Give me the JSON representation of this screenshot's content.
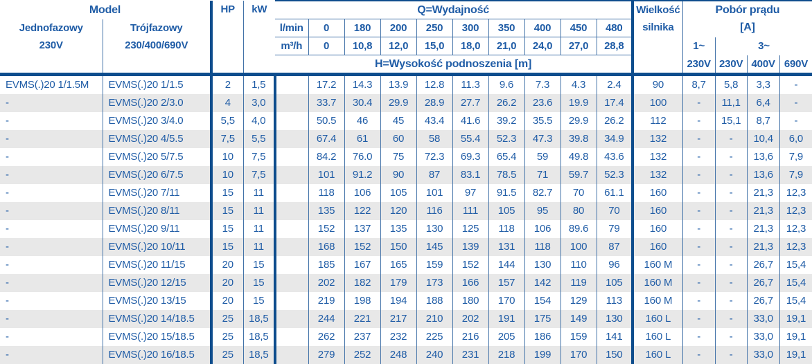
{
  "header": {
    "model": "Model",
    "single_phase_line1": "Jednofazowy",
    "single_phase_line2": "230V",
    "three_phase_line1": "Trójfazowy",
    "three_phase_line2": "230/400/690V",
    "hp": "HP",
    "kw": "kW",
    "flow_title": "Q=Wydajność",
    "flow_unit_lmin": "l/min",
    "flow_unit_m3h": "m³/h",
    "flow_lmin": [
      "0",
      "180",
      "200",
      "250",
      "300",
      "350",
      "400",
      "450",
      "480"
    ],
    "flow_m3h": [
      "0",
      "10,8",
      "12,0",
      "15,0",
      "18,0",
      "21,0",
      "24,0",
      "27,0",
      "28,8"
    ],
    "head_title": "H=Wysokość podnoszenia [m]",
    "motor_size_line1": "Wielkość",
    "motor_size_line2": "silnika",
    "current_title": "Pobór prądu",
    "current_unit": "[A]",
    "phase1": "1~",
    "phase3": "3~",
    "volt_1ph_230": "230V",
    "volt_3ph_230": "230V",
    "volt_3ph_400": "400V",
    "volt_3ph_690": "690V"
  },
  "colors": {
    "text_blue": "#1f5ca6",
    "thin_line_blue": "#4272a8",
    "thick_line_navy": "#0e4d8d",
    "stripe_gray": "#e8e8e8"
  },
  "rows": [
    {
      "m1": "EVMS(.)20 1/1.5M",
      "m3": "EVMS(.)20 1/1.5",
      "hp": "2",
      "kw": "1,5",
      "h": [
        "17.2",
        "14.3",
        "13.9",
        "12.8",
        "11.3",
        "9.6",
        "7.3",
        "4.3",
        "2.4"
      ],
      "size": "90",
      "a": [
        "8,7",
        "5,8",
        "3,3",
        "-"
      ]
    },
    {
      "m1": "-",
      "m3": "EVMS(.)20 2/3.0",
      "hp": "4",
      "kw": "3,0",
      "h": [
        "33.7",
        "30.4",
        "29.9",
        "28.9",
        "27.7",
        "26.2",
        "23.6",
        "19.9",
        "17.4"
      ],
      "size": "100",
      "a": [
        "-",
        "11,1",
        "6,4",
        "-"
      ]
    },
    {
      "m1": "-",
      "m3": "EVMS(.)20 3/4.0",
      "hp": "5,5",
      "kw": "4,0",
      "h": [
        "50.5",
        "46",
        "45",
        "43.4",
        "41.6",
        "39.2",
        "35.5",
        "29.9",
        "26.2"
      ],
      "size": "112",
      "a": [
        "-",
        "15,1",
        "8,7",
        "-"
      ]
    },
    {
      "m1": "-",
      "m3": "EVMS(.)20 4/5.5",
      "hp": "7,5",
      "kw": "5,5",
      "h": [
        "67.4",
        "61",
        "60",
        "58",
        "55.4",
        "52.3",
        "47.3",
        "39.8",
        "34.9"
      ],
      "size": "132",
      "a": [
        "-",
        "-",
        "10,4",
        "6,0"
      ]
    },
    {
      "m1": "-",
      "m3": "EVMS(.)20 5/7.5",
      "hp": "10",
      "kw": "7,5",
      "h": [
        "84.2",
        "76.0",
        "75",
        "72.3",
        "69.3",
        "65.4",
        "59",
        "49.8",
        "43.6"
      ],
      "size": "132",
      "a": [
        "-",
        "-",
        "13,6",
        "7,9"
      ]
    },
    {
      "m1": "-",
      "m3": "EVMS(.)20 6/7.5",
      "hp": "10",
      "kw": "7,5",
      "h": [
        "101",
        "91.2",
        "90",
        "87",
        "83.1",
        "78.5",
        "71",
        "59.7",
        "52.3"
      ],
      "size": "132",
      "a": [
        "-",
        "-",
        "13,6",
        "7,9"
      ]
    },
    {
      "m1": "-",
      "m3": "EVMS(.)20 7/11",
      "hp": "15",
      "kw": "11",
      "h": [
        "118",
        "106",
        "105",
        "101",
        "97",
        "91.5",
        "82.7",
        "70",
        "61.1"
      ],
      "size": "160",
      "a": [
        "-",
        "-",
        "21,3",
        "12,3"
      ]
    },
    {
      "m1": "-",
      "m3": "EVMS(.)20 8/11",
      "hp": "15",
      "kw": "11",
      "h": [
        "135",
        "122",
        "120",
        "116",
        "111",
        "105",
        "95",
        "80",
        "70"
      ],
      "size": "160",
      "a": [
        "-",
        "-",
        "21,3",
        "12,3"
      ]
    },
    {
      "m1": "-",
      "m3": "EVMS(.)20 9/11",
      "hp": "15",
      "kw": "11",
      "h": [
        "152",
        "137",
        "135",
        "130",
        "125",
        "118",
        "106",
        "89.6",
        "79"
      ],
      "size": "160",
      "a": [
        "-",
        "-",
        "21,3",
        "12,3"
      ]
    },
    {
      "m1": "-",
      "m3": "EVMS(.)20 10/11",
      "hp": "15",
      "kw": "11",
      "h": [
        "168",
        "152",
        "150",
        "145",
        "139",
        "131",
        "118",
        "100",
        "87"
      ],
      "size": "160",
      "a": [
        "-",
        "-",
        "21,3",
        "12,3"
      ]
    },
    {
      "m1": "-",
      "m3": "EVMS(.)20 11/15",
      "hp": "20",
      "kw": "15",
      "h": [
        "185",
        "167",
        "165",
        "159",
        "152",
        "144",
        "130",
        "110",
        "96"
      ],
      "size": "160 M",
      "a": [
        "-",
        "-",
        "26,7",
        "15,4"
      ]
    },
    {
      "m1": "-",
      "m3": "EVMS(.)20 12/15",
      "hp": "20",
      "kw": "15",
      "h": [
        "202",
        "182",
        "179",
        "173",
        "166",
        "157",
        "142",
        "119",
        "105"
      ],
      "size": "160 M",
      "a": [
        "-",
        "-",
        "26,7",
        "15,4"
      ]
    },
    {
      "m1": "-",
      "m3": "EVMS(.)20 13/15",
      "hp": "20",
      "kw": "15",
      "h": [
        "219",
        "198",
        "194",
        "188",
        "180",
        "170",
        "154",
        "129",
        "113"
      ],
      "size": "160 M",
      "a": [
        "-",
        "-",
        "26,7",
        "15,4"
      ]
    },
    {
      "m1": "-",
      "m3": "EVMS(.)20 14/18.5",
      "hp": "25",
      "kw": "18,5",
      "h": [
        "244",
        "221",
        "217",
        "210",
        "202",
        "191",
        "175",
        "149",
        "130"
      ],
      "size": "160 L",
      "a": [
        "-",
        "-",
        "33,0",
        "19,1"
      ]
    },
    {
      "m1": "-",
      "m3": "EVMS(.)20 15/18.5",
      "hp": "25",
      "kw": "18,5",
      "h": [
        "262",
        "237",
        "232",
        "225",
        "216",
        "205",
        "186",
        "159",
        "141"
      ],
      "size": "160 L",
      "a": [
        "-",
        "-",
        "33,0",
        "19,1"
      ]
    },
    {
      "m1": "-",
      "m3": "EVMS(.)20 16/18.5",
      "hp": "25",
      "kw": "18,5",
      "h": [
        "279",
        "252",
        "248",
        "240",
        "231",
        "218",
        "199",
        "170",
        "150"
      ],
      "size": "160 L",
      "a": [
        "-",
        "-",
        "33,0",
        "19,1"
      ]
    }
  ]
}
